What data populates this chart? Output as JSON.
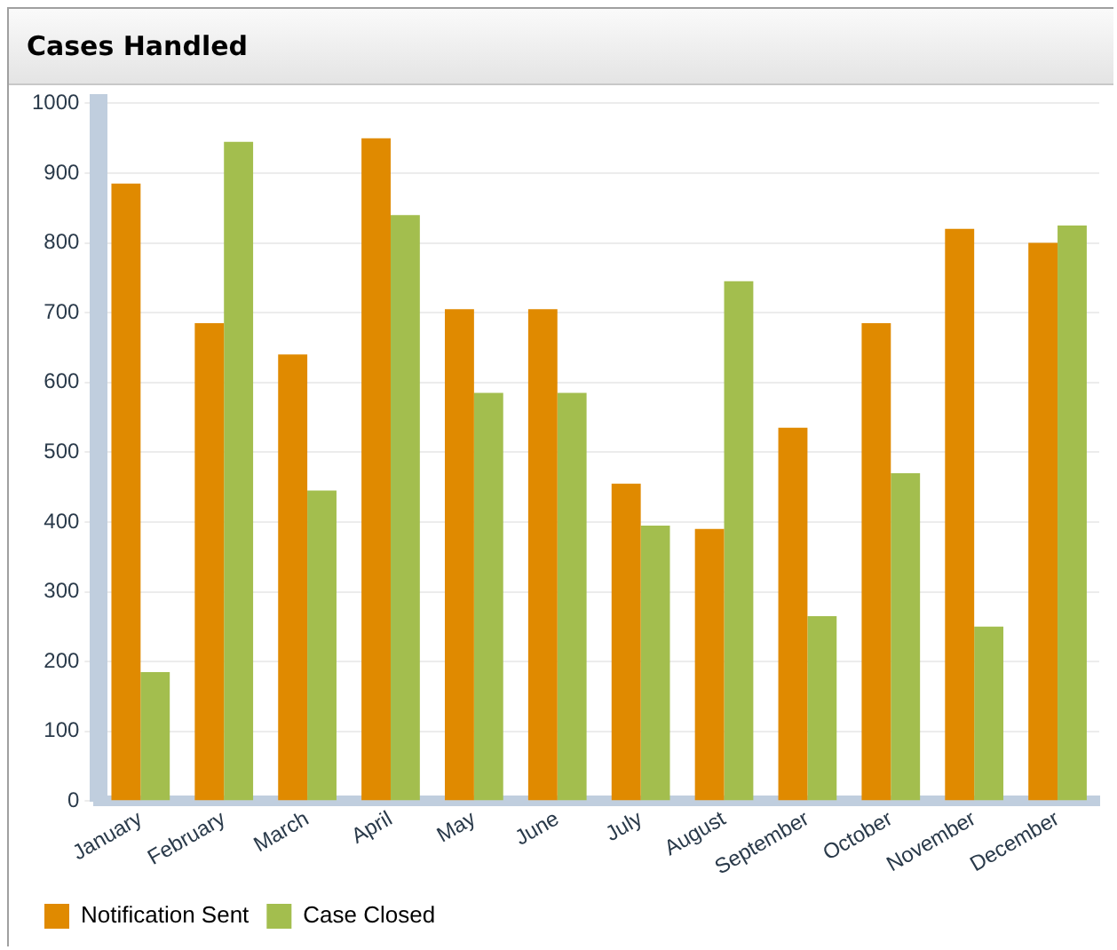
{
  "chart_data": {
    "type": "bar",
    "title": "Cases Handled",
    "categories": [
      "January",
      "February",
      "March",
      "April",
      "May",
      "June",
      "July",
      "August",
      "September",
      "October",
      "November",
      "December"
    ],
    "series": [
      {
        "name": "Notification Sent",
        "color": "#e08a00",
        "values": [
          885,
          685,
          640,
          950,
          705,
          705,
          455,
          390,
          535,
          685,
          820,
          800
        ]
      },
      {
        "name": "Case Closed",
        "color": "#a3be4e",
        "values": [
          185,
          945,
          445,
          840,
          585,
          585,
          395,
          745,
          265,
          470,
          250,
          825
        ]
      }
    ],
    "ylim": [
      0,
      1000
    ],
    "yticks": [
      0,
      100,
      200,
      300,
      400,
      500,
      600,
      700,
      800,
      900,
      1000
    ],
    "grid": "y",
    "legend": "bottom left"
  }
}
